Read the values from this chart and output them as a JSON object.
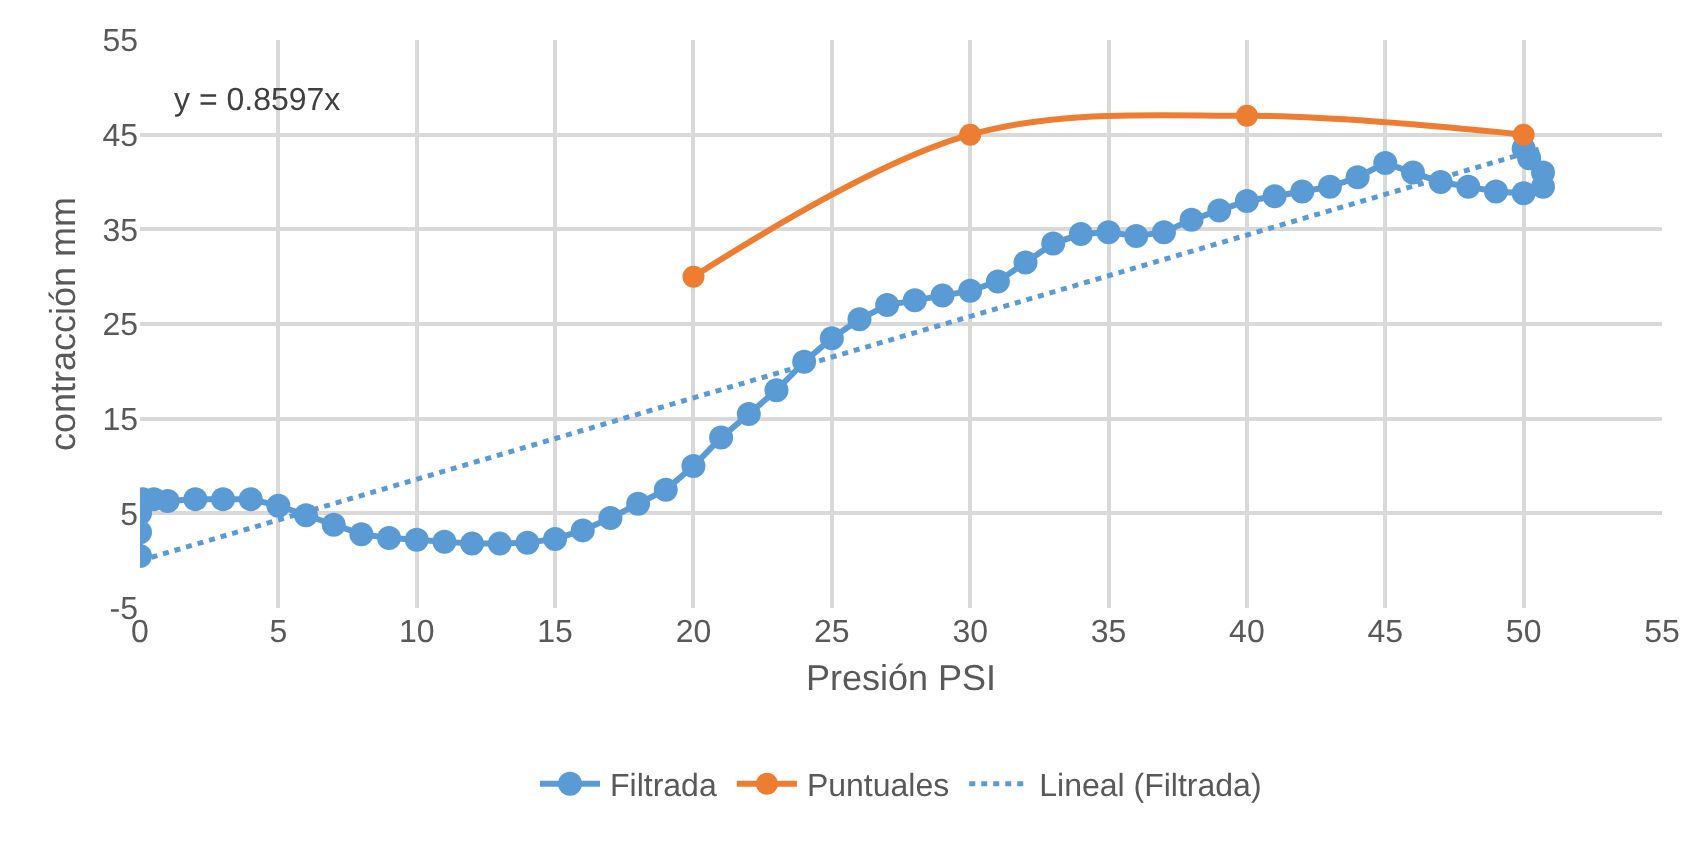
{
  "chart_data": {
    "type": "line",
    "xlabel": "Presión PSI",
    "ylabel": "contracción mm",
    "xlim": [
      0,
      55
    ],
    "xticks": [
      0,
      5,
      10,
      15,
      20,
      25,
      30,
      35,
      40,
      45,
      50,
      55
    ],
    "ylim": [
      -5,
      55
    ],
    "yticks": [
      -5,
      5,
      15,
      25,
      35,
      45,
      55
    ],
    "grid": true,
    "legend": "bottom",
    "annotations": [
      "y = 0.8597x"
    ],
    "series": [
      {
        "name": "Filtrada",
        "color": "#5b9bd5",
        "marker": "circle",
        "line_style": "solid",
        "x": [
          0,
          0,
          0,
          0.1,
          0.5,
          1,
          2,
          3,
          4,
          5,
          6,
          7,
          8,
          9,
          10,
          11,
          12,
          13,
          14,
          15,
          16,
          17,
          18,
          19,
          20,
          21,
          22,
          23,
          24,
          25,
          26,
          27,
          28,
          29,
          30,
          31,
          32,
          33,
          34,
          35,
          36,
          37,
          38,
          39,
          40,
          41,
          42,
          43,
          44,
          45,
          46,
          47,
          48,
          49,
          50,
          50.7,
          50.7,
          50.2,
          50
        ],
        "values": [
          0.5,
          3,
          5,
          6.5,
          6.5,
          6.3,
          6.5,
          6.5,
          6.5,
          5.8,
          4.8,
          3.8,
          2.8,
          2.4,
          2.2,
          2.0,
          1.8,
          1.8,
          1.9,
          2.3,
          3.2,
          4.5,
          6,
          7.5,
          10,
          13,
          15.5,
          18,
          21,
          23.5,
          25.5,
          27,
          27.5,
          28,
          28.5,
          29.5,
          31.5,
          33.5,
          34.5,
          34.7,
          34.3,
          34.7,
          36,
          37,
          38,
          38.5,
          39,
          39.5,
          40.5,
          42,
          41,
          40,
          39.5,
          39,
          38.8,
          39.5,
          41,
          42.5,
          43.5
        ]
      },
      {
        "name": "Puntuales",
        "color": "#ed7d31",
        "marker": "circle",
        "line_style": "solid",
        "x": [
          20,
          30,
          40,
          50
        ],
        "values": [
          30,
          45,
          47,
          45
        ]
      },
      {
        "name": "Lineal (Filtrada)",
        "color": "#5b9bd5",
        "marker": "none",
        "line_style": "dotted",
        "x": [
          0,
          50.7
        ],
        "values": [
          0,
          43.6
        ]
      }
    ]
  }
}
